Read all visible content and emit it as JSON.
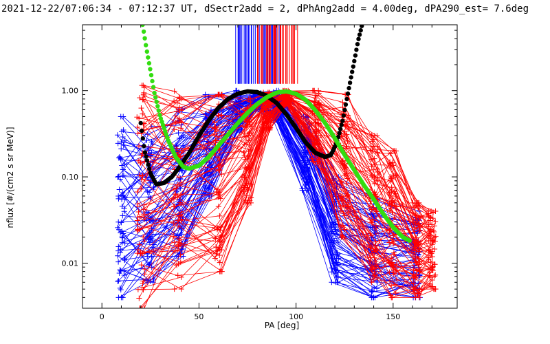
{
  "chart_data": {
    "type": "line",
    "title": "2021-12-22/07:06:34 - 07:12:37 UT, dSectr2add = 2, dPhAng2add = 4.00deg, dPA290_est=   7.6deg",
    "xlabel": "PA [deg]",
    "ylabel": "nflux [#/(cm2 s sr MeV)]",
    "xlim": [
      -10,
      183
    ],
    "ylim": [
      0.003,
      5.8
    ],
    "yscale": "log",
    "xticks": [
      0,
      50,
      100,
      150
    ],
    "xtick_labels": [
      "0",
      "50",
      "100",
      "150"
    ],
    "yticks": [
      0.01,
      0.1,
      1.0
    ],
    "ytick_labels": [
      "0.01",
      "0.10",
      "1.00"
    ],
    "grid": false,
    "legend": "none",
    "series": [
      {
        "color": "#000000",
        "style": "thick-dots",
        "x": [
          20,
          22,
          25,
          28,
          32,
          36,
          40,
          45,
          50,
          55,
          60,
          65,
          70,
          75,
          80,
          85,
          90,
          95,
          100,
          105,
          110,
          115,
          118,
          121,
          124,
          127,
          130,
          132,
          134
        ],
        "y": [
          0.42,
          0.2,
          0.11,
          0.082,
          0.085,
          0.1,
          0.13,
          0.19,
          0.3,
          0.45,
          0.63,
          0.8,
          0.92,
          0.98,
          0.96,
          0.87,
          0.72,
          0.53,
          0.37,
          0.25,
          0.19,
          0.17,
          0.18,
          0.25,
          0.45,
          1.0,
          2.2,
          3.8,
          5.8
        ]
      },
      {
        "color": "#33dd11",
        "style": "thick-dots",
        "x": [
          21,
          23,
          25,
          27,
          30,
          34,
          38,
          42,
          45,
          50,
          55,
          60,
          65,
          70,
          75,
          80,
          85,
          90,
          95,
          100,
          105,
          110,
          115,
          120,
          125,
          130,
          135,
          140,
          145,
          150,
          155,
          159
        ],
        "y": [
          5.8,
          3.0,
          1.7,
          0.95,
          0.5,
          0.27,
          0.17,
          0.13,
          0.125,
          0.135,
          0.17,
          0.23,
          0.31,
          0.42,
          0.55,
          0.7,
          0.84,
          0.95,
          0.98,
          0.92,
          0.78,
          0.59,
          0.42,
          0.28,
          0.18,
          0.12,
          0.08,
          0.055,
          0.037,
          0.026,
          0.02,
          0.018
        ]
      },
      {
        "color": "#0000ff",
        "style": "thin-lines-plus-markers",
        "x": [
          10,
          25,
          40,
          55,
          70,
          80,
          90,
          105,
          120,
          140,
          162
        ],
        "y_min": [
          0.004,
          0.006,
          0.012,
          0.06,
          0.35,
          0.6,
          0.45,
          0.07,
          0.006,
          0.004,
          0.004
        ],
        "y_max": [
          0.5,
          0.55,
          0.6,
          0.9,
          1.0,
          0.95,
          1.0,
          0.5,
          0.1,
          0.06,
          0.04
        ]
      },
      {
        "color": "#ff0000",
        "style": "thin-lines-plus-markers",
        "x": [
          20,
          39,
          60,
          75,
          85,
          95,
          110,
          125,
          140,
          150,
          162,
          170
        ],
        "y_min": [
          0.003,
          0.005,
          0.008,
          0.05,
          0.35,
          0.7,
          0.15,
          0.02,
          0.006,
          0.004,
          0.004,
          0.005
        ],
        "y_max": [
          1.15,
          1.2,
          0.9,
          0.8,
          0.95,
          1.0,
          1.0,
          0.9,
          0.3,
          0.2,
          0.05,
          0.04
        ]
      }
    ],
    "annotations": {
      "vertical_tick_bands": [
        {
          "color": "#0000ff",
          "x_range": [
            66,
            92
          ]
        },
        {
          "color": "#ff0000",
          "x_range": [
            80,
            102
          ]
        }
      ]
    }
  }
}
